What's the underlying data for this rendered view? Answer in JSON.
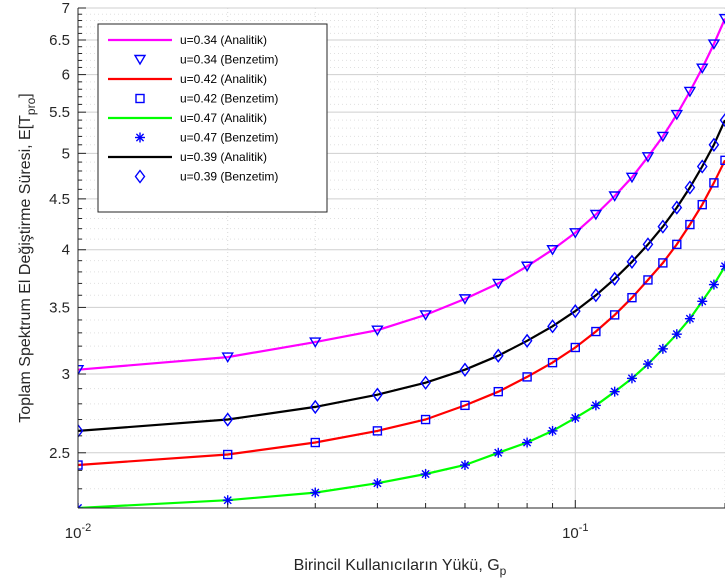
{
  "chart_data": {
    "type": "line",
    "xscale": "log",
    "yscale": "log",
    "xlim": [
      0.01,
      0.2
    ],
    "ylim": [
      2.2,
      7
    ],
    "grid": true,
    "xlabel": "Birincil Kullanıcıların Yükü, G",
    "xlabel_sub": "p",
    "ylabel": "Toplam Spektrum El Değiştirme Süresi, E[T",
    "ylabel_sub": "pro",
    "ylabel_end": "]",
    "x_ticks": [
      {
        "value": 0.01,
        "base": "10",
        "exp": "-2"
      },
      {
        "value": 0.1,
        "base": "10",
        "exp": "-1"
      }
    ],
    "y_ticks": [
      {
        "value": 2.5,
        "label": "2.5"
      },
      {
        "value": 3,
        "label": "3"
      },
      {
        "value": 3.5,
        "label": "3.5"
      },
      {
        "value": 4,
        "label": "4"
      },
      {
        "value": 4.5,
        "label": "4.5"
      },
      {
        "value": 5,
        "label": "5"
      },
      {
        "value": 5.5,
        "label": "5.5"
      },
      {
        "value": 6,
        "label": "6"
      },
      {
        "value": 6.5,
        "label": "6.5"
      },
      {
        "value": 7,
        "label": "7"
      }
    ],
    "marker_x": [
      0.01,
      0.02,
      0.03,
      0.04,
      0.05,
      0.06,
      0.07,
      0.08,
      0.09,
      0.1,
      0.11,
      0.12,
      0.13,
      0.14,
      0.15,
      0.16,
      0.17,
      0.18,
      0.19,
      0.2
    ],
    "series": [
      {
        "label": "u=0.34 (Analitik)",
        "kind": "line",
        "color": "#ff00ff",
        "x": [
          0.01,
          0.02,
          0.03,
          0.04,
          0.05,
          0.06,
          0.07,
          0.08,
          0.09,
          0.1,
          0.11,
          0.12,
          0.13,
          0.14,
          0.15,
          0.16,
          0.17,
          0.18,
          0.19,
          0.2
        ],
        "y": [
          3.03,
          3.12,
          3.23,
          3.32,
          3.44,
          3.57,
          3.7,
          3.85,
          4.0,
          4.16,
          4.34,
          4.53,
          4.73,
          4.96,
          5.2,
          5.47,
          5.77,
          6.09,
          6.44,
          6.83
        ]
      },
      {
        "label": "u=0.34 (Benzetim)",
        "kind": "marker",
        "marker": "triangle-down",
        "color": "#0000ff",
        "x": [
          0.01,
          0.02,
          0.03,
          0.04,
          0.05,
          0.06,
          0.07,
          0.08,
          0.09,
          0.1,
          0.11,
          0.12,
          0.13,
          0.14,
          0.15,
          0.16,
          0.17,
          0.18,
          0.19,
          0.2
        ],
        "y": [
          3.03,
          3.12,
          3.23,
          3.32,
          3.44,
          3.57,
          3.7,
          3.85,
          4.0,
          4.16,
          4.34,
          4.53,
          4.73,
          4.96,
          5.2,
          5.47,
          5.77,
          6.09,
          6.44,
          6.83
        ]
      },
      {
        "label": "u=0.42 (Analitik)",
        "kind": "line",
        "color": "#ff0000",
        "x": [
          0.01,
          0.02,
          0.03,
          0.04,
          0.05,
          0.06,
          0.07,
          0.08,
          0.09,
          0.1,
          0.11,
          0.12,
          0.13,
          0.14,
          0.15,
          0.16,
          0.17,
          0.18,
          0.19,
          0.2
        ],
        "y": [
          2.43,
          2.49,
          2.56,
          2.63,
          2.7,
          2.79,
          2.88,
          2.98,
          3.08,
          3.19,
          3.31,
          3.44,
          3.58,
          3.73,
          3.88,
          4.05,
          4.24,
          4.44,
          4.67,
          4.92
        ]
      },
      {
        "label": "u=0.42 (Benzetim)",
        "kind": "marker",
        "marker": "square",
        "color": "#0000ff",
        "x": [
          0.01,
          0.02,
          0.03,
          0.04,
          0.05,
          0.06,
          0.07,
          0.08,
          0.09,
          0.1,
          0.11,
          0.12,
          0.13,
          0.14,
          0.15,
          0.16,
          0.17,
          0.18,
          0.19,
          0.2
        ],
        "y": [
          2.43,
          2.49,
          2.56,
          2.63,
          2.7,
          2.79,
          2.88,
          2.98,
          3.08,
          3.19,
          3.31,
          3.44,
          3.58,
          3.73,
          3.88,
          4.05,
          4.24,
          4.44,
          4.67,
          4.92
        ]
      },
      {
        "label": "u=0.47 (Analitik)",
        "kind": "line",
        "color": "#00ff00",
        "x": [
          0.01,
          0.02,
          0.03,
          0.04,
          0.05,
          0.06,
          0.07,
          0.08,
          0.09,
          0.1,
          0.11,
          0.12,
          0.13,
          0.14,
          0.15,
          0.16,
          0.17,
          0.18,
          0.19,
          0.2
        ],
        "y": [
          2.2,
          2.24,
          2.28,
          2.33,
          2.38,
          2.43,
          2.5,
          2.56,
          2.63,
          2.71,
          2.79,
          2.88,
          2.97,
          3.07,
          3.18,
          3.29,
          3.41,
          3.55,
          3.69,
          3.85
        ]
      },
      {
        "label": "u=0.47 (Benzetim)",
        "kind": "marker",
        "marker": "asterisk",
        "color": "#0000ff",
        "x": [
          0.01,
          0.02,
          0.03,
          0.04,
          0.05,
          0.06,
          0.07,
          0.08,
          0.09,
          0.1,
          0.11,
          0.12,
          0.13,
          0.14,
          0.15,
          0.16,
          0.17,
          0.18,
          0.19,
          0.2
        ],
        "y": [
          2.2,
          2.24,
          2.28,
          2.33,
          2.38,
          2.43,
          2.5,
          2.56,
          2.63,
          2.71,
          2.79,
          2.88,
          2.97,
          3.07,
          3.18,
          3.29,
          3.41,
          3.55,
          3.69,
          3.85
        ]
      },
      {
        "label": "u=0.39 (Analitik)",
        "kind": "line",
        "color": "#000000",
        "x": [
          0.01,
          0.02,
          0.03,
          0.04,
          0.05,
          0.06,
          0.07,
          0.08,
          0.09,
          0.1,
          0.11,
          0.12,
          0.13,
          0.14,
          0.15,
          0.16,
          0.17,
          0.18,
          0.19,
          0.2
        ],
        "y": [
          2.63,
          2.7,
          2.78,
          2.86,
          2.94,
          3.03,
          3.13,
          3.24,
          3.35,
          3.47,
          3.6,
          3.74,
          3.89,
          4.05,
          4.22,
          4.41,
          4.62,
          4.85,
          5.1,
          5.4
        ]
      },
      {
        "label": "u=0.39 (Benzetim)",
        "kind": "marker",
        "marker": "diamond",
        "color": "#0000ff",
        "x": [
          0.01,
          0.02,
          0.03,
          0.04,
          0.05,
          0.06,
          0.07,
          0.08,
          0.09,
          0.1,
          0.11,
          0.12,
          0.13,
          0.14,
          0.15,
          0.16,
          0.17,
          0.18,
          0.19,
          0.2
        ],
        "y": [
          2.63,
          2.7,
          2.78,
          2.86,
          2.94,
          3.03,
          3.13,
          3.24,
          3.35,
          3.47,
          3.6,
          3.74,
          3.89,
          4.05,
          4.22,
          4.41,
          4.62,
          4.85,
          5.1,
          5.4
        ]
      }
    ],
    "legend_position": "top-left"
  }
}
